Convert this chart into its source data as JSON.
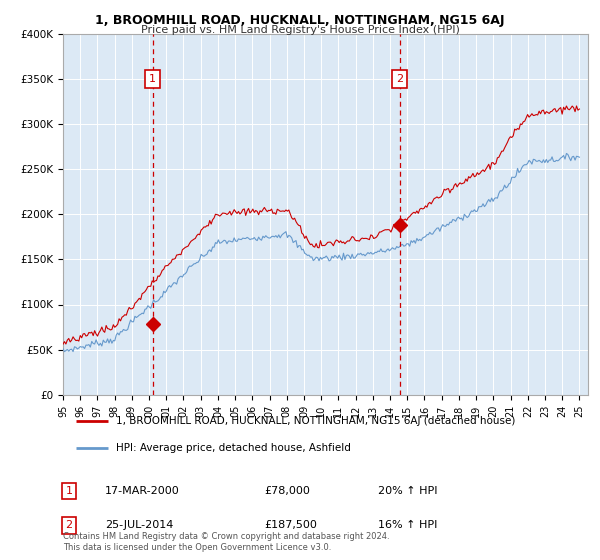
{
  "title": "1, BROOMHILL ROAD, HUCKNALL, NOTTINGHAM, NG15 6AJ",
  "subtitle": "Price paid vs. HM Land Registry's House Price Index (HPI)",
  "background_color": "#dce9f5",
  "y_min": 0,
  "y_max": 400000,
  "y_ticks": [
    0,
    50000,
    100000,
    150000,
    200000,
    250000,
    300000,
    350000,
    400000
  ],
  "y_tick_labels": [
    "£0",
    "£50K",
    "£100K",
    "£150K",
    "£200K",
    "£250K",
    "£300K",
    "£350K",
    "£400K"
  ],
  "sale1_date": 2000.21,
  "sale1_price": 78000,
  "sale1_label": "1",
  "sale1_text": "17-MAR-2000",
  "sale1_amount": "£78,000",
  "sale1_pct": "20% ↑ HPI",
  "sale2_date": 2014.56,
  "sale2_price": 187500,
  "sale2_label": "2",
  "sale2_text": "25-JUL-2014",
  "sale2_amount": "£187,500",
  "sale2_pct": "16% ↑ HPI",
  "legend_line1": "1, BROOMHILL ROAD, HUCKNALL, NOTTINGHAM, NG15 6AJ (detached house)",
  "legend_line2": "HPI: Average price, detached house, Ashfield",
  "footer": "Contains HM Land Registry data © Crown copyright and database right 2024.\nThis data is licensed under the Open Government Licence v3.0.",
  "red_line_color": "#cc0000",
  "blue_line_color": "#6699cc",
  "dashed_line_color": "#cc0000",
  "grid_color": "#ffffff",
  "border_color": "#aaaaaa"
}
